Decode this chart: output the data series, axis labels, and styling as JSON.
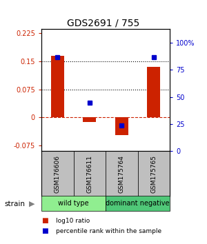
{
  "title": "GDS2691 / 755",
  "samples": [
    "GSM176606",
    "GSM176611",
    "GSM175764",
    "GSM175765"
  ],
  "log10_ratio": [
    0.165,
    -0.012,
    -0.047,
    0.135
  ],
  "percentile_rank": [
    87,
    45,
    24,
    87
  ],
  "groups": [
    {
      "name": "wild type",
      "indices": [
        0,
        1
      ],
      "color": "#90EE90"
    },
    {
      "name": "dominant negative",
      "indices": [
        2,
        3
      ],
      "color": "#50C878"
    }
  ],
  "bar_color": "#CC2200",
  "dot_color": "#0000CC",
  "ylim_left": [
    -0.09,
    0.235
  ],
  "ylim_right": [
    0,
    112.5
  ],
  "yticks_left": [
    -0.075,
    0,
    0.075,
    0.15,
    0.225
  ],
  "yticks_right": [
    0,
    25,
    50,
    75,
    100
  ],
  "ytick_labels_left": [
    "-0.075",
    "0",
    "0.075",
    "0.15",
    "0.225"
  ],
  "ytick_labels_right": [
    "0",
    "25",
    "50",
    "75",
    "100%"
  ],
  "hlines": [
    0.075,
    0.15
  ],
  "hline_zero_color": "#CC2200",
  "strain_label": "strain",
  "legend_items": [
    {
      "color": "#CC2200",
      "label": "log10 ratio"
    },
    {
      "color": "#0000CC",
      "label": "percentile rank within the sample"
    }
  ]
}
